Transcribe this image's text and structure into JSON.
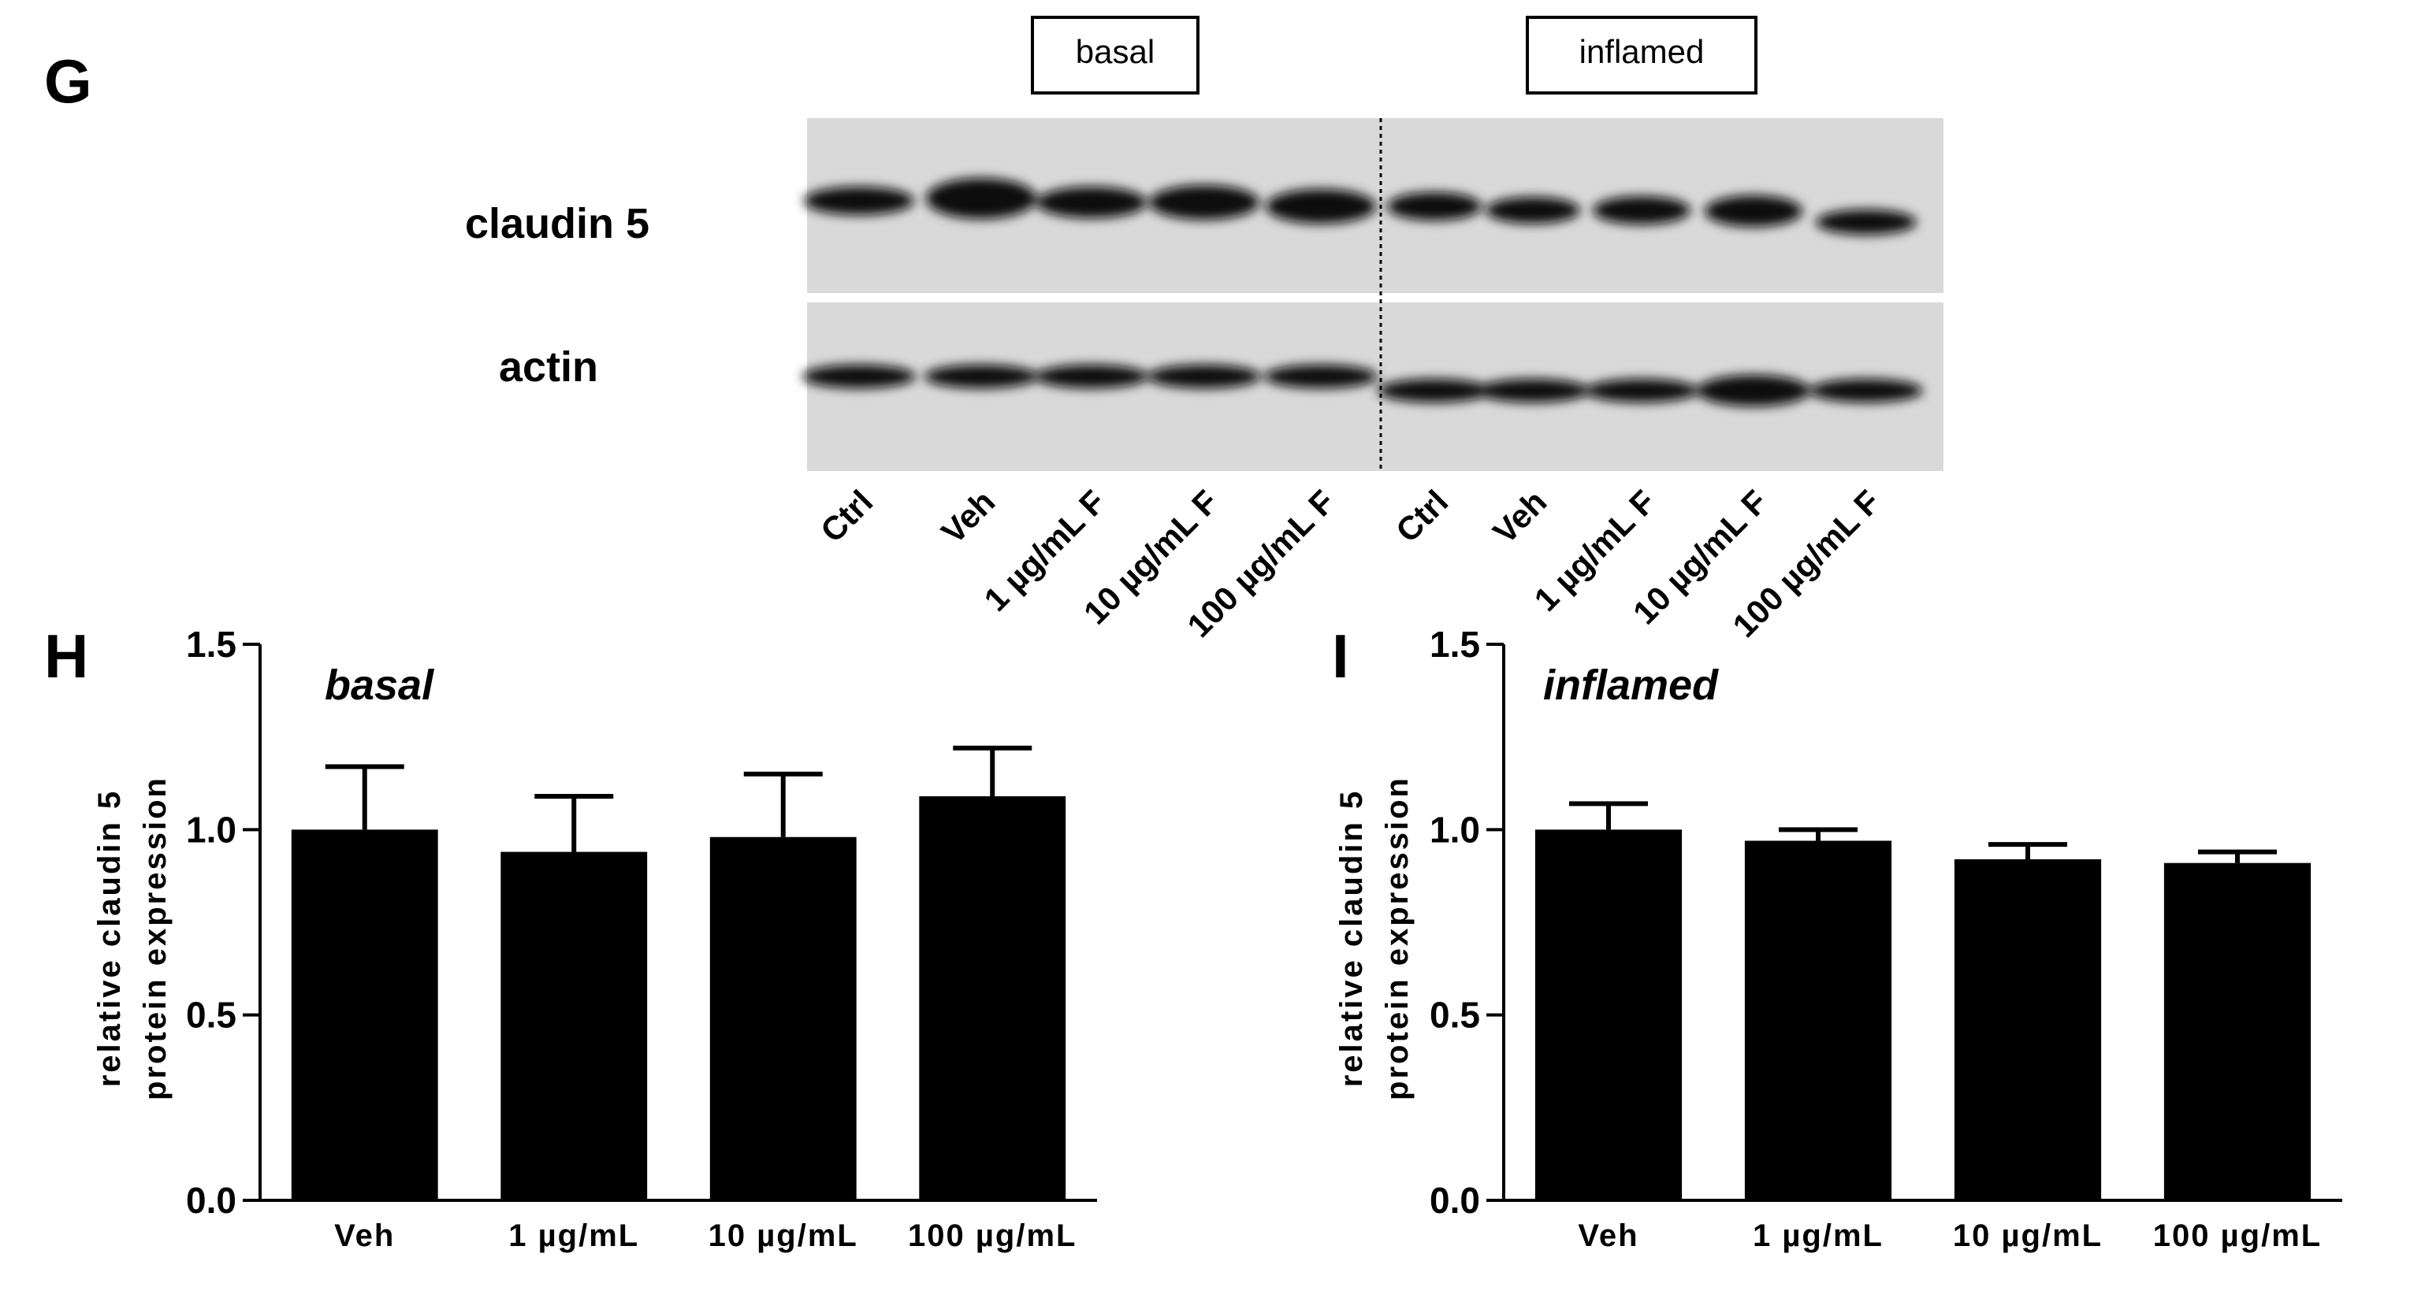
{
  "panels": {
    "G": "G",
    "H": "H",
    "I": "I"
  },
  "blot": {
    "group_labels": [
      "basal",
      "inflamed"
    ],
    "row_labels": [
      "claudin 5",
      "actin"
    ],
    "lane_labels": [
      "Ctrl",
      "Veh",
      "1 µg/mL F",
      "10 µg/mL F",
      "100 µg/mL F",
      "Ctrl",
      "Veh",
      "1 µg/mL F",
      "10 µg/mL F",
      "100 µg/mL F"
    ]
  },
  "chart_data": [
    {
      "type": "bar",
      "title": "basal",
      "ylabel": [
        "relative claudin 5",
        "protein expression"
      ],
      "categories": [
        "Veh",
        "1  µg/mL",
        "10 µg/mL",
        "100 µg/mL"
      ],
      "values": [
        1.0,
        0.94,
        0.98,
        1.09
      ],
      "errors": [
        0.17,
        0.15,
        0.17,
        0.13
      ],
      "ylim": [
        0,
        1.5
      ],
      "yticks": [
        "0.0",
        "0.5",
        "1.0",
        "1.5"
      ],
      "colors": {
        "bar": "#000000"
      }
    },
    {
      "type": "bar",
      "title": "inflamed",
      "ylabel": [
        "relative claudin 5",
        "protein expression"
      ],
      "categories": [
        "Veh",
        "1  µg/mL",
        "10 µg/mL",
        "100 µg/mL"
      ],
      "values": [
        1.0,
        0.97,
        0.92,
        0.91
      ],
      "errors": [
        0.07,
        0.03,
        0.04,
        0.03
      ],
      "ylim": [
        0,
        1.5
      ],
      "yticks": [
        "0.0",
        "0.5",
        "1.0",
        "1.5"
      ],
      "colors": {
        "bar": "#000000"
      }
    }
  ]
}
